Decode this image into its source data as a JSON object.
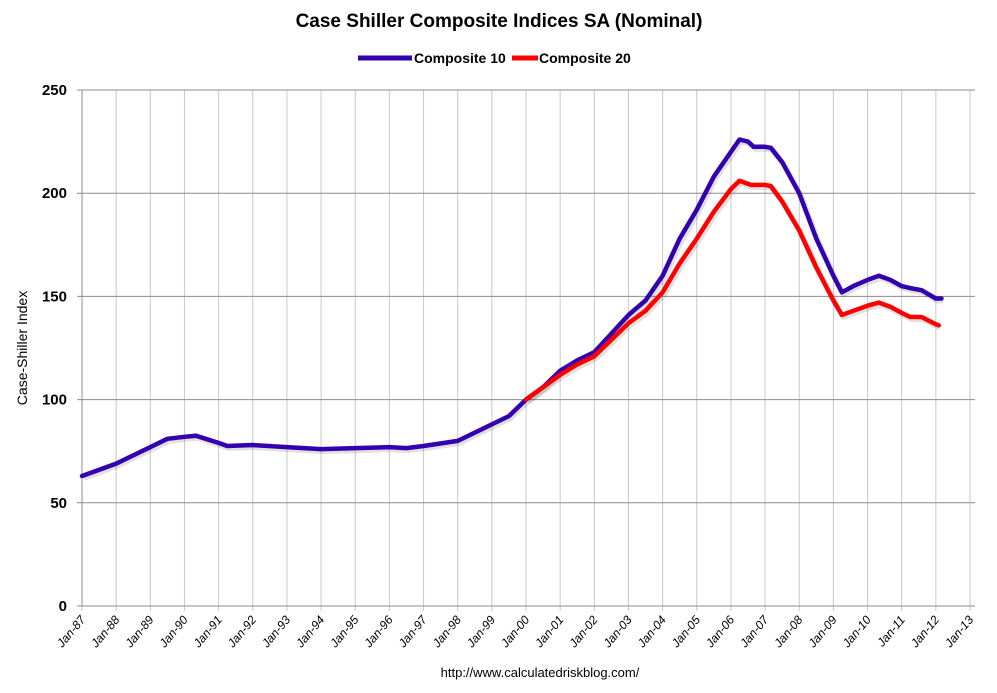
{
  "chart_data": {
    "type": "line",
    "title": "Case Shiller Composite Indices SA (Nominal)",
    "xlabel": "",
    "ylabel": "Case-Shiller Index",
    "ylim": [
      0,
      250
    ],
    "yticks": [
      0,
      50,
      100,
      150,
      200,
      250
    ],
    "xlim": [
      "1987-01",
      "2013-01"
    ],
    "xtick_labels": [
      "Jan-87",
      "Jan-88",
      "Jan-89",
      "Jan-90",
      "Jan-91",
      "Jan-92",
      "Jan-93",
      "Jan-94",
      "Jan-95",
      "Jan-96",
      "Jan-97",
      "Jan-98",
      "Jan-99",
      "Jan-00",
      "Jan-01",
      "Jan-02",
      "Jan-03",
      "Jan-04",
      "Jan-05",
      "Jan-06",
      "Jan-07",
      "Jan-08",
      "Jan-09",
      "Jan-10",
      "Jan-11",
      "Jan-12",
      "Jan-13"
    ],
    "grid": true,
    "legend_position": "top",
    "source": "http://www.calculatedriskblog.com/",
    "series": [
      {
        "name": "Composite 10",
        "color": "#3300B0",
        "x": [
          "1987-01",
          "1988-01",
          "1989-01",
          "1989-07",
          "1990-01",
          "1990-05",
          "1991-01",
          "1991-04",
          "1992-01",
          "1993-01",
          "1994-01",
          "1995-01",
          "1996-01",
          "1996-07",
          "1997-01",
          "1998-01",
          "1998-07",
          "1999-01",
          "1999-07",
          "2000-01",
          "2000-07",
          "2001-01",
          "2001-07",
          "2002-01",
          "2002-07",
          "2003-01",
          "2003-07",
          "2004-01",
          "2004-07",
          "2005-01",
          "2005-07",
          "2006-01",
          "2006-04",
          "2006-07",
          "2006-09",
          "2007-01",
          "2007-03",
          "2007-07",
          "2008-01",
          "2008-07",
          "2009-01",
          "2009-04",
          "2009-08",
          "2010-01",
          "2010-05",
          "2010-09",
          "2011-01",
          "2011-04",
          "2011-08",
          "2012-01",
          "2012-03"
        ],
        "values": [
          63,
          69,
          77,
          81,
          82,
          82.5,
          79,
          77.5,
          78,
          77,
          76,
          76.5,
          77,
          76.5,
          77.5,
          80,
          84,
          88,
          92,
          100,
          106,
          114,
          119,
          123,
          132,
          141,
          148,
          160,
          178,
          192,
          208,
          220,
          226,
          225,
          222.5,
          222.5,
          222,
          215,
          200,
          178,
          160,
          152,
          155,
          158,
          160,
          158,
          155,
          154,
          153,
          149,
          149
        ]
      },
      {
        "name": "Composite 20",
        "color": "#FF0000",
        "x": [
          "2000-01",
          "2000-07",
          "2001-01",
          "2001-07",
          "2002-01",
          "2002-07",
          "2003-01",
          "2003-07",
          "2004-01",
          "2004-07",
          "2005-01",
          "2005-07",
          "2006-01",
          "2006-04",
          "2006-08",
          "2007-01",
          "2007-03",
          "2007-07",
          "2008-01",
          "2008-07",
          "2009-01",
          "2009-04",
          "2009-08",
          "2010-01",
          "2010-05",
          "2010-09",
          "2011-01",
          "2011-04",
          "2011-08",
          "2012-01",
          "2012-02"
        ],
        "values": [
          100,
          106,
          112,
          117,
          121,
          129,
          137,
          143,
          152,
          166,
          178,
          191,
          202,
          206,
          204,
          204,
          203.5,
          196,
          182,
          164,
          148,
          141,
          143,
          145.5,
          147,
          145,
          142,
          140,
          140,
          136.5,
          136
        ]
      }
    ]
  }
}
